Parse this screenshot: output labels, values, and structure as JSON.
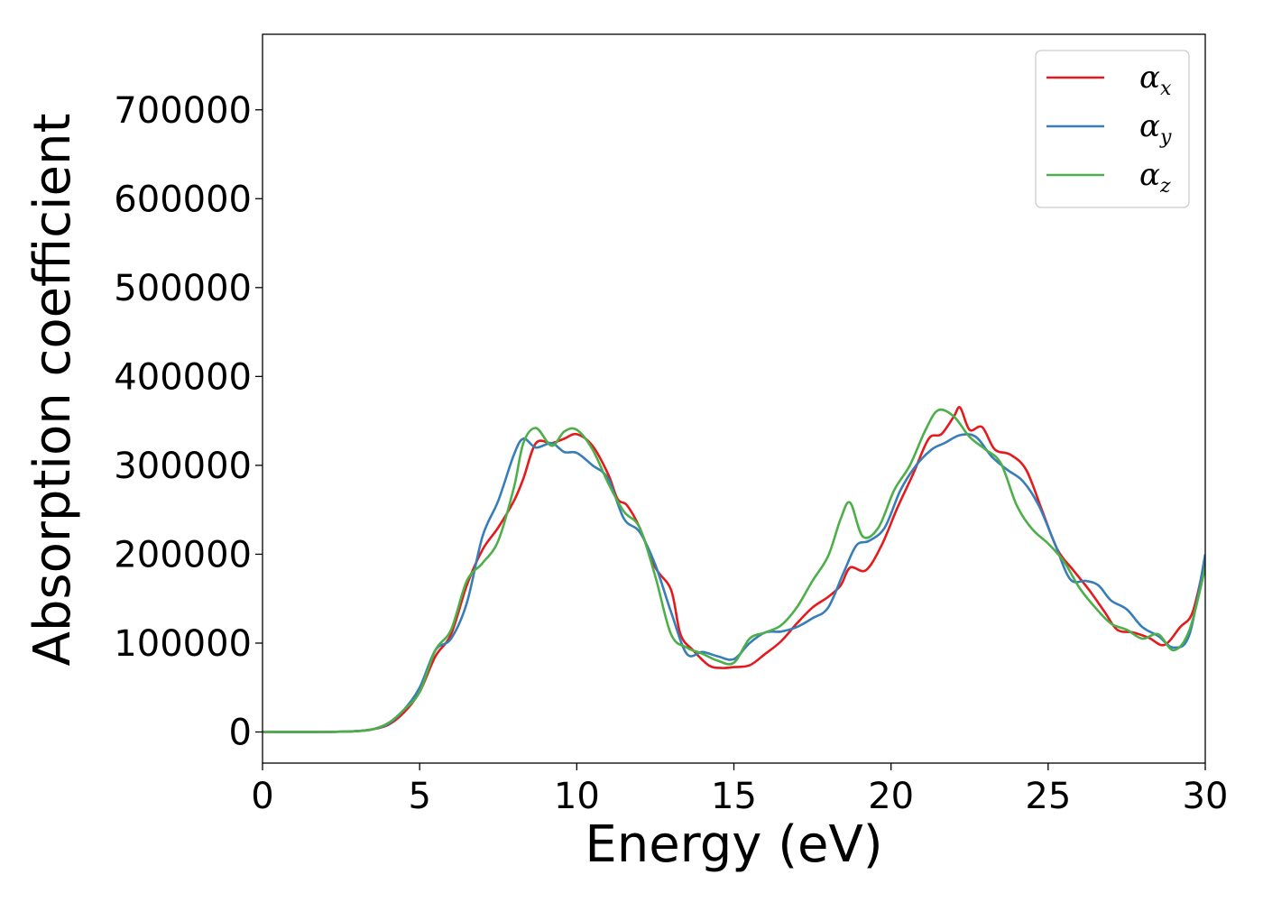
{
  "chart_data": {
    "type": "line",
    "title": "",
    "xlabel": "Energy (eV)",
    "ylabel": "Absorption coefficient",
    "xlim": [
      0,
      30
    ],
    "ylim": [
      -35000,
      785000
    ],
    "xticks": [
      0,
      5,
      10,
      15,
      20,
      25,
      30
    ],
    "yticks": [
      0,
      100000,
      200000,
      300000,
      400000,
      500000,
      600000,
      700000
    ],
    "grid": false,
    "legend_position": "top-right",
    "series": [
      {
        "name": "α_x",
        "base": "α",
        "sub": "x",
        "color": "#e41a1c",
        "points": [
          [
            0,
            0
          ],
          [
            2,
            0
          ],
          [
            3,
            1000
          ],
          [
            3.5,
            3000
          ],
          [
            4,
            8000
          ],
          [
            4.5,
            22000
          ],
          [
            5,
            45000
          ],
          [
            5.5,
            85000
          ],
          [
            6,
            110000
          ],
          [
            6.5,
            165000
          ],
          [
            7,
            205000
          ],
          [
            7.5,
            230000
          ],
          [
            8,
            260000
          ],
          [
            8.3,
            285000
          ],
          [
            8.7,
            325000
          ],
          [
            9.2,
            325000
          ],
          [
            9.6,
            330000
          ],
          [
            10,
            335000
          ],
          [
            10.5,
            322000
          ],
          [
            11,
            290000
          ],
          [
            11.3,
            262000
          ],
          [
            11.6,
            255000
          ],
          [
            12,
            230000
          ],
          [
            12.5,
            185000
          ],
          [
            13,
            160000
          ],
          [
            13.3,
            110000
          ],
          [
            13.7,
            92000
          ],
          [
            14.2,
            75000
          ],
          [
            14.6,
            72000
          ],
          [
            15,
            73000
          ],
          [
            15.5,
            75000
          ],
          [
            16,
            88000
          ],
          [
            16.5,
            102000
          ],
          [
            17,
            122000
          ],
          [
            17.5,
            140000
          ],
          [
            18,
            152000
          ],
          [
            18.4,
            165000
          ],
          [
            18.7,
            185000
          ],
          [
            19.2,
            182000
          ],
          [
            19.7,
            210000
          ],
          [
            20.2,
            252000
          ],
          [
            20.7,
            290000
          ],
          [
            21.2,
            330000
          ],
          [
            21.6,
            335000
          ],
          [
            22,
            355000
          ],
          [
            22.2,
            365000
          ],
          [
            22.5,
            340000
          ],
          [
            22.9,
            343000
          ],
          [
            23.3,
            318000
          ],
          [
            23.8,
            312000
          ],
          [
            24.3,
            295000
          ],
          [
            24.8,
            250000
          ],
          [
            25.3,
            205000
          ],
          [
            25.8,
            182000
          ],
          [
            26.3,
            160000
          ],
          [
            26.8,
            135000
          ],
          [
            27.2,
            115000
          ],
          [
            27.7,
            112000
          ],
          [
            28.2,
            106000
          ],
          [
            28.7,
            98000
          ],
          [
            29.2,
            118000
          ],
          [
            29.6,
            135000
          ],
          [
            30,
            195000
          ]
        ]
      },
      {
        "name": "α_y",
        "base": "α",
        "sub": "y",
        "color": "#377eb8",
        "points": [
          [
            0,
            0
          ],
          [
            2,
            0
          ],
          [
            3,
            1000
          ],
          [
            3.5,
            3000
          ],
          [
            4,
            9000
          ],
          [
            4.5,
            25000
          ],
          [
            5,
            50000
          ],
          [
            5.5,
            92000
          ],
          [
            6,
            105000
          ],
          [
            6.5,
            145000
          ],
          [
            7,
            220000
          ],
          [
            7.5,
            260000
          ],
          [
            8,
            312000
          ],
          [
            8.3,
            330000
          ],
          [
            8.7,
            320000
          ],
          [
            9.2,
            325000
          ],
          [
            9.6,
            315000
          ],
          [
            10,
            314000
          ],
          [
            10.5,
            300000
          ],
          [
            11,
            285000
          ],
          [
            11.5,
            240000
          ],
          [
            12,
            225000
          ],
          [
            12.5,
            188000
          ],
          [
            13,
            135000
          ],
          [
            13.5,
            88000
          ],
          [
            14,
            90000
          ],
          [
            14.5,
            85000
          ],
          [
            15,
            82000
          ],
          [
            15.5,
            100000
          ],
          [
            16,
            112000
          ],
          [
            16.5,
            113000
          ],
          [
            17,
            118000
          ],
          [
            17.5,
            128000
          ],
          [
            18,
            140000
          ],
          [
            18.5,
            180000
          ],
          [
            18.9,
            210000
          ],
          [
            19.3,
            215000
          ],
          [
            19.8,
            230000
          ],
          [
            20.3,
            272000
          ],
          [
            20.8,
            300000
          ],
          [
            21.3,
            318000
          ],
          [
            21.7,
            325000
          ],
          [
            22.2,
            334000
          ],
          [
            22.7,
            332000
          ],
          [
            23.2,
            310000
          ],
          [
            23.7,
            295000
          ],
          [
            24.2,
            282000
          ],
          [
            24.7,
            255000
          ],
          [
            25.2,
            213000
          ],
          [
            25.7,
            172000
          ],
          [
            26.2,
            170000
          ],
          [
            26.6,
            165000
          ],
          [
            27,
            148000
          ],
          [
            27.5,
            138000
          ],
          [
            28,
            118000
          ],
          [
            28.5,
            108000
          ],
          [
            29,
            95000
          ],
          [
            29.5,
            110000
          ],
          [
            30,
            200000
          ]
        ]
      },
      {
        "name": "α_z",
        "base": "α",
        "sub": "z",
        "color": "#4daf4a",
        "points": [
          [
            0,
            0
          ],
          [
            2,
            0
          ],
          [
            3,
            1000
          ],
          [
            3.5,
            3000
          ],
          [
            4,
            10000
          ],
          [
            4.5,
            25000
          ],
          [
            5,
            45000
          ],
          [
            5.5,
            92000
          ],
          [
            6,
            115000
          ],
          [
            6.5,
            170000
          ],
          [
            7,
            190000
          ],
          [
            7.5,
            215000
          ],
          [
            8,
            275000
          ],
          [
            8.3,
            325000
          ],
          [
            8.7,
            342000
          ],
          [
            9.2,
            322000
          ],
          [
            9.6,
            338000
          ],
          [
            10,
            340000
          ],
          [
            10.5,
            318000
          ],
          [
            11,
            280000
          ],
          [
            11.5,
            248000
          ],
          [
            12,
            230000
          ],
          [
            12.5,
            175000
          ],
          [
            13,
            110000
          ],
          [
            13.5,
            95000
          ],
          [
            14,
            88000
          ],
          [
            14.5,
            80000
          ],
          [
            15,
            78000
          ],
          [
            15.5,
            105000
          ],
          [
            16,
            112000
          ],
          [
            16.5,
            120000
          ],
          [
            17,
            140000
          ],
          [
            17.5,
            170000
          ],
          [
            18,
            198000
          ],
          [
            18.4,
            240000
          ],
          [
            18.7,
            258000
          ],
          [
            19.1,
            220000
          ],
          [
            19.6,
            230000
          ],
          [
            20.1,
            272000
          ],
          [
            20.6,
            300000
          ],
          [
            21.1,
            340000
          ],
          [
            21.5,
            362000
          ],
          [
            22,
            355000
          ],
          [
            22.5,
            332000
          ],
          [
            23,
            318000
          ],
          [
            23.5,
            302000
          ],
          [
            24,
            255000
          ],
          [
            24.5,
            228000
          ],
          [
            25,
            212000
          ],
          [
            25.5,
            192000
          ],
          [
            26,
            162000
          ],
          [
            26.5,
            140000
          ],
          [
            27,
            122000
          ],
          [
            27.5,
            115000
          ],
          [
            28,
            105000
          ],
          [
            28.5,
            110000
          ],
          [
            29,
            92000
          ],
          [
            29.5,
            115000
          ],
          [
            30,
            185000
          ]
        ]
      }
    ]
  }
}
